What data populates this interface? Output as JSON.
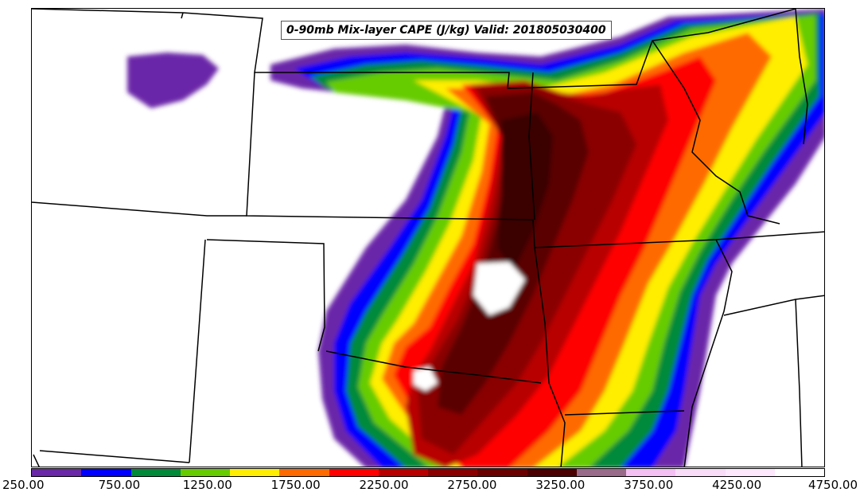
{
  "map": {
    "title": "0-90mb Mix-layer CAPE (J/kg) Valid: 201805030400",
    "variable": "CAPE"
  },
  "colorbar": {
    "colors": [
      "#6a28a8",
      "#0000ff",
      "#008a3a",
      "#66cc00",
      "#ffee00",
      "#ff6a00",
      "#ff0000",
      "#b80000",
      "#8a0000",
      "#6a0000",
      "#4a0000",
      "#9a6a8a",
      "#f4c0f4",
      "#f8dcf8",
      "#fde8fd",
      "#ffffff"
    ],
    "tick_labels": [
      "250.00",
      "750.00",
      "1250.00",
      "1750.00",
      "2250.00",
      "2750.00",
      "3250.00",
      "3750.00",
      "4250.00",
      "4750.00"
    ]
  }
}
